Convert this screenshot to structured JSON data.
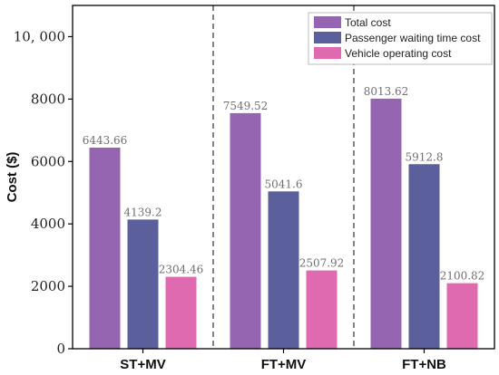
{
  "chart_data": {
    "type": "bar",
    "categories": [
      "ST+MV",
      "FT+MV",
      "FT+NB"
    ],
    "series": [
      {
        "name": "Total cost",
        "color": "#9565b2",
        "values": [
          6443.66,
          7549.52,
          8013.62
        ],
        "labels": [
          "6443.66",
          "7549.52",
          "8013.62"
        ]
      },
      {
        "name": "Passenger waiting time cost",
        "color": "#5b5f9c",
        "values": [
          4139.2,
          5041.6,
          5912.8
        ],
        "labels": [
          "4139.2",
          "5041.6",
          "5912.8"
        ]
      },
      {
        "name": "Vehicle operating cost",
        "color": "#e06aaf",
        "values": [
          2304.46,
          2507.92,
          2100.82
        ],
        "labels": [
          "2304.46",
          "2507.92",
          "2100.82"
        ]
      }
    ],
    "ylabel": "Cost ($)",
    "xlabel": "",
    "ylim": [
      0,
      11000
    ],
    "yticks": [
      0,
      2000,
      4000,
      6000,
      8000,
      10000
    ],
    "ytick_labels": [
      "0",
      "2000",
      "4000",
      "6000",
      "8000",
      "10, 000"
    ],
    "group_separators": "dashed",
    "legend_position": "top-right",
    "grid": false
  }
}
